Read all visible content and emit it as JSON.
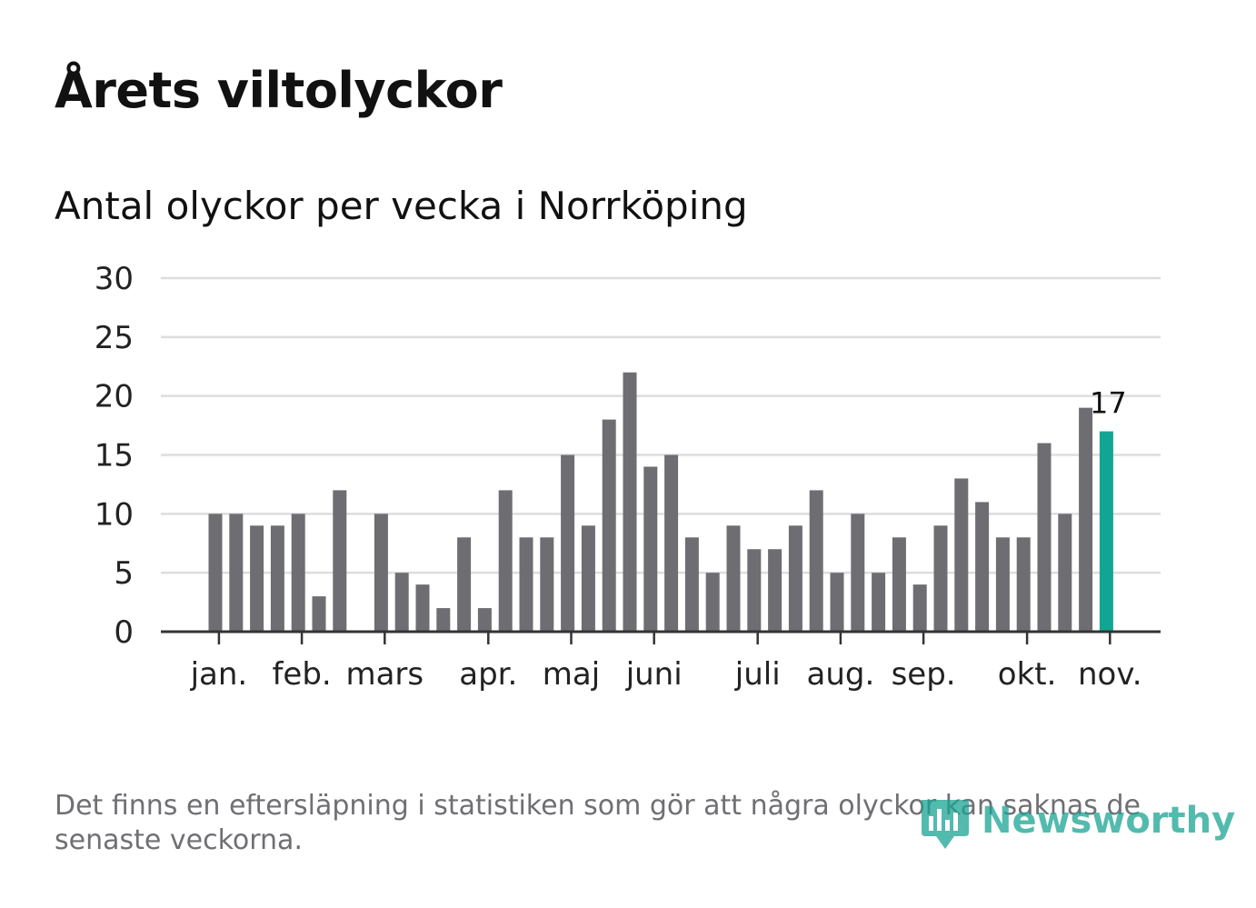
{
  "title": "Årets viltolyckor",
  "subtitle": "Antal olyckor per vecka i Norrköping",
  "footnote": "Det finns en eftersläpning i statistiken som gör att några olyckor kan saknas de senaste veckorna.",
  "logo_text": "Newsworthy",
  "colors": {
    "bar": "#6e6d72",
    "highlight": "#12a594",
    "grid": "#dddddd",
    "axis": "#333333",
    "text": "#222222"
  },
  "chart_data": {
    "type": "bar",
    "title": "Antal olyckor per vecka i Norrköping",
    "xlabel": "",
    "ylabel": "",
    "ylim": [
      0,
      30
    ],
    "yticks": [
      0,
      5,
      10,
      15,
      20,
      25,
      30
    ],
    "weeks": [
      1,
      2,
      3,
      4,
      5,
      6,
      7,
      8,
      9,
      10,
      11,
      12,
      13,
      14,
      15,
      16,
      17,
      18,
      19,
      20,
      21,
      22,
      23,
      24,
      25,
      26,
      27,
      28,
      29,
      30,
      31,
      32,
      33,
      34,
      35,
      36,
      37,
      38,
      39,
      40,
      41,
      42,
      43,
      44,
      45
    ],
    "values": [
      10,
      10,
      9,
      9,
      10,
      3,
      12,
      0,
      10,
      5,
      4,
      2,
      8,
      2,
      12,
      8,
      8,
      15,
      9,
      18,
      22,
      14,
      15,
      8,
      5,
      9,
      7,
      7,
      9,
      12,
      5,
      10,
      5,
      8,
      4,
      9,
      13,
      11,
      8,
      8,
      16,
      10,
      19,
      17,
      0
    ],
    "highlight_week": 44,
    "highlight_label": "17",
    "month_ticks": [
      {
        "label": "jan.",
        "week": 1.5
      },
      {
        "label": "feb.",
        "week": 5.5
      },
      {
        "label": "mars",
        "week": 9.5
      },
      {
        "label": "apr.",
        "week": 14.5
      },
      {
        "label": "maj",
        "week": 18.5
      },
      {
        "label": "juni",
        "week": 22.5
      },
      {
        "label": "juli",
        "week": 27.5
      },
      {
        "label": "aug.",
        "week": 31.5
      },
      {
        "label": "sep.",
        "week": 35.5
      },
      {
        "label": "okt.",
        "week": 40.5
      },
      {
        "label": "nov.",
        "week": 44.5
      }
    ]
  }
}
